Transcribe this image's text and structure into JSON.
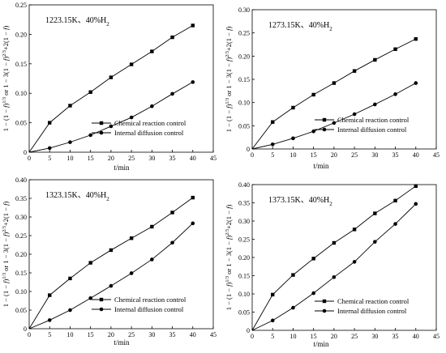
{
  "chart_data": [
    {
      "type": "line",
      "title": "1223.15K、40%H",
      "title_subscript": "2",
      "ylabel": "1 − (1 − f)^1/3 or 1 − 3(1 − f)^2/3+2(1 − f)",
      "xlabel": "",
      "xlim": [
        0,
        45
      ],
      "ylim": [
        0,
        0.25
      ],
      "xticks": [
        0,
        5,
        10,
        15,
        20,
        25,
        30,
        35,
        40,
        45
      ],
      "yticks": [
        0,
        0.05,
        0.1,
        0.15,
        0.2,
        0.25
      ],
      "legend_position": "bottom-right",
      "x": [
        0,
        5,
        10,
        15,
        20,
        25,
        30,
        35,
        40
      ],
      "series": [
        {
          "name": "Chemical reaction control",
          "marker": "square",
          "values": [
            0,
            0.05,
            0.079,
            0.102,
            0.127,
            0.149,
            0.171,
            0.195,
            0.215
          ]
        },
        {
          "name": "Internal diffusion control",
          "marker": "circle",
          "values": [
            0,
            0.007,
            0.017,
            0.029,
            0.044,
            0.059,
            0.078,
            0.099,
            0.119
          ]
        }
      ]
    },
    {
      "type": "line",
      "title": "1273.15K、40%H",
      "title_subscript": "2",
      "ylabel": "1 − (1 − f)^1/3 or 1 − 3(1 − f)^2/3+2(1 − f)",
      "xlabel": "",
      "xlim": [
        0,
        45
      ],
      "ylim": [
        0,
        0.3
      ],
      "xticks": [
        0,
        5,
        10,
        15,
        20,
        25,
        30,
        35,
        40,
        45
      ],
      "yticks": [
        0,
        0.05,
        0.1,
        0.15,
        0.2,
        0.25,
        0.3
      ],
      "legend_position": "bottom-right",
      "x": [
        0,
        5,
        10,
        15,
        20,
        25,
        30,
        35,
        40
      ],
      "series": [
        {
          "name": "Chemical reaction control",
          "marker": "square",
          "values": [
            0,
            0.058,
            0.089,
            0.117,
            0.142,
            0.168,
            0.192,
            0.215,
            0.237
          ]
        },
        {
          "name": "Internal diffusion control",
          "marker": "circle",
          "values": [
            0,
            0.01,
            0.023,
            0.038,
            0.056,
            0.075,
            0.096,
            0.118,
            0.142
          ]
        }
      ]
    },
    {
      "type": "line",
      "title": "1323.15K、40%H",
      "title_subscript": "2",
      "ylabel": "1 − (1 − f)^1/3 or 1 − 3(1 − f)^2/3+2(1 − f)",
      "xlabel": "t/min",
      "xlim": [
        0,
        45
      ],
      "ylim": [
        0,
        0.4
      ],
      "xticks": [
        0,
        5,
        10,
        15,
        20,
        25,
        30,
        35,
        40,
        45
      ],
      "yticks": [
        0,
        0.05,
        0.1,
        0.15,
        0.2,
        0.25,
        0.3,
        0.35,
        0.4
      ],
      "legend_position": "bottom-right",
      "x": [
        0,
        5,
        10,
        15,
        20,
        25,
        30,
        35,
        40
      ],
      "series": [
        {
          "name": "Chemical reaction control",
          "marker": "square",
          "values": [
            0,
            0.09,
            0.135,
            0.177,
            0.211,
            0.243,
            0.274,
            0.312,
            0.352
          ]
        },
        {
          "name": "Internal diffusion control",
          "marker": "circle",
          "values": [
            0,
            0.023,
            0.05,
            0.082,
            0.115,
            0.149,
            0.186,
            0.231,
            0.283
          ]
        }
      ]
    },
    {
      "type": "line",
      "title": "1373.15K、40%H",
      "title_subscript": "2",
      "ylabel": "1 − (1 − f)^1/3 or 1 − 3(1 − f)^2/3+2(1 − f)",
      "xlabel": "t/min",
      "xlim": [
        0,
        45
      ],
      "ylim": [
        0,
        0.4
      ],
      "xticks": [
        0,
        5,
        10,
        15,
        20,
        25,
        30,
        35,
        40,
        45
      ],
      "yticks": [
        0,
        0.05,
        0.1,
        0.15,
        0.2,
        0.25,
        0.3,
        0.35,
        0.4
      ],
      "legend_position": "bottom-right",
      "x": [
        0,
        5,
        10,
        15,
        20,
        25,
        30,
        35,
        40
      ],
      "series": [
        {
          "name": "Chemical reaction control",
          "marker": "square",
          "values": [
            0,
            0.098,
            0.152,
            0.197,
            0.24,
            0.277,
            0.321,
            0.356,
            0.396
          ]
        },
        {
          "name": "Internal diffusion control",
          "marker": "circle",
          "values": [
            0,
            0.027,
            0.062,
            0.102,
            0.146,
            0.188,
            0.243,
            0.292,
            0.347
          ]
        }
      ]
    }
  ]
}
